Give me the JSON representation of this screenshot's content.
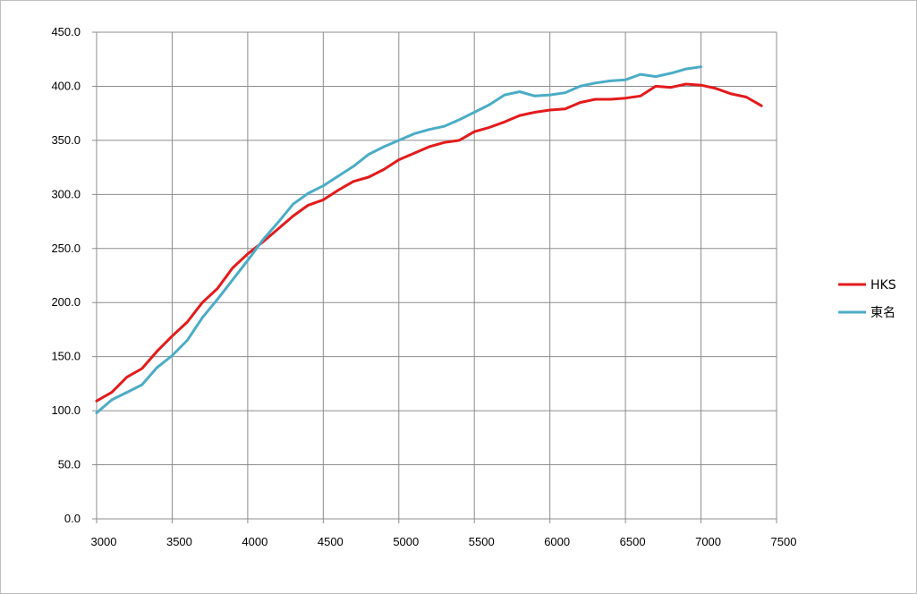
{
  "chart_data": {
    "type": "line",
    "title": "",
    "xlabel": "",
    "ylabel": "",
    "xlim": [
      3000,
      7500
    ],
    "ylim": [
      0,
      450
    ],
    "x_ticks": [
      3000,
      3500,
      4000,
      4500,
      5000,
      5500,
      6000,
      6500,
      7000,
      7500
    ],
    "y_ticks": [
      0,
      50,
      100,
      150,
      200,
      250,
      300,
      350,
      400,
      450
    ],
    "x_tick_labels": [
      "3000",
      "3500",
      "4000",
      "4500",
      "5000",
      "5500",
      "6000",
      "6500",
      "7000",
      "7500"
    ],
    "y_tick_labels": [
      "0.0",
      "50.0",
      "100.0",
      "150.0",
      "200.0",
      "250.0",
      "300.0",
      "350.0",
      "400.0",
      "450.0"
    ],
    "grid": true,
    "legend_position": "right",
    "series": [
      {
        "name": "HKS",
        "color": "#e31a1c",
        "x": [
          3000,
          3100,
          3200,
          3300,
          3400,
          3500,
          3600,
          3700,
          3800,
          3900,
          4000,
          4100,
          4200,
          4300,
          4400,
          4500,
          4600,
          4700,
          4800,
          4900,
          5000,
          5100,
          5200,
          5300,
          5400,
          5500,
          5600,
          5700,
          5800,
          5900,
          6000,
          6100,
          6200,
          6300,
          6400,
          6500,
          6600,
          6700,
          6800,
          6900,
          7000,
          7100,
          7200,
          7300,
          7400
        ],
        "y": [
          109,
          117,
          131,
          139,
          155,
          169,
          182,
          200,
          213,
          232,
          245,
          256,
          268,
          280,
          290,
          295,
          304,
          312,
          316,
          323,
          332,
          338,
          344,
          348,
          350,
          358,
          362,
          367,
          373,
          376,
          378,
          379,
          385,
          388,
          388,
          389,
          391,
          400,
          399,
          402,
          401,
          398,
          393,
          390,
          382
        ]
      },
      {
        "name": "東名",
        "color": "#4bacc6",
        "x": [
          3000,
          3100,
          3200,
          3300,
          3400,
          3500,
          3600,
          3700,
          3800,
          3900,
          4000,
          4100,
          4200,
          4300,
          4400,
          4500,
          4600,
          4700,
          4800,
          4900,
          5000,
          5100,
          5200,
          5300,
          5400,
          5500,
          5600,
          5700,
          5800,
          5900,
          6000,
          6100,
          6200,
          6300,
          6400,
          6500,
          6600,
          6700,
          6800,
          6900,
          7000
        ],
        "y": [
          98,
          110,
          117,
          124,
          140,
          151,
          165,
          186,
          203,
          221,
          239,
          258,
          274,
          291,
          301,
          308,
          317,
          326,
          337,
          344,
          350,
          356,
          360,
          363,
          369,
          376,
          383,
          392,
          395,
          391,
          392,
          394,
          400,
          403,
          405,
          406,
          411,
          409,
          412,
          416,
          418
        ]
      }
    ]
  }
}
